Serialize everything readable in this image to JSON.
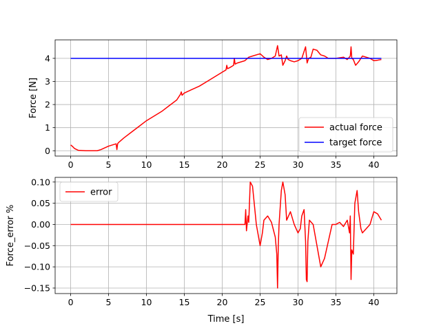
{
  "colors": {
    "actual": "#ff0000",
    "target": "#0000ff",
    "error": "#ff0000",
    "grid": "#b0b0b0"
  },
  "chart_data": [
    {
      "type": "line",
      "xlabel": "",
      "ylabel": "Force [N]",
      "xlim": [
        -2.05,
        43.05
      ],
      "ylim": [
        -0.23,
        4.8
      ],
      "grid": true,
      "legend_position": "lower-right",
      "xticks": [
        0,
        5,
        10,
        15,
        20,
        25,
        30,
        35,
        40
      ],
      "xtick_labels": [
        "0",
        "5",
        "10",
        "15",
        "20",
        "25",
        "30",
        "35",
        "40"
      ],
      "yticks": [
        0,
        1,
        2,
        3,
        4
      ],
      "ytick_labels": [
        "0",
        "1",
        "2",
        "3",
        "4"
      ],
      "series": [
        {
          "name": "actual force",
          "color": "#ff0000",
          "x": [
            0,
            0.2,
            0.5,
            0.8,
            1.0,
            2.0,
            3.0,
            3.5,
            4.0,
            5.0,
            6.0,
            6.1,
            6.2,
            6.3,
            7.0,
            8.0,
            9.0,
            10.0,
            11.0,
            12.0,
            13.0,
            14.0,
            14.5,
            14.6,
            14.7,
            15.0,
            16.0,
            17.0,
            18.0,
            19.0,
            20.0,
            20.5,
            20.6,
            20.7,
            21.0,
            21.5,
            21.6,
            21.7,
            22.0,
            23.0,
            23.5,
            24.0,
            25.0,
            25.5,
            26.0,
            26.5,
            27.0,
            27.3,
            27.5,
            27.8,
            28.0,
            28.3,
            28.5,
            28.7,
            29.0,
            29.5,
            30.0,
            30.5,
            31.0,
            31.2,
            31.4,
            31.7,
            32.0,
            32.5,
            33.0,
            33.5,
            34.0,
            35.0,
            36.0,
            36.5,
            36.9,
            37.0,
            37.1,
            37.3,
            37.6,
            38.0,
            38.5,
            39.0,
            39.5,
            40.0,
            40.5,
            41.0
          ],
          "y": [
            0.25,
            0.2,
            0.1,
            0.05,
            0.02,
            0.0,
            0.0,
            0.0,
            0.05,
            0.2,
            0.3,
            0.05,
            0.3,
            0.35,
            0.55,
            0.8,
            1.05,
            1.3,
            1.5,
            1.7,
            1.95,
            2.2,
            2.45,
            2.55,
            2.4,
            2.5,
            2.65,
            2.8,
            3.0,
            3.2,
            3.4,
            3.5,
            3.7,
            3.55,
            3.6,
            3.7,
            4.0,
            3.75,
            3.8,
            3.9,
            4.05,
            4.1,
            4.2,
            4.05,
            3.95,
            4.0,
            4.1,
            4.55,
            4.1,
            4.15,
            3.7,
            3.9,
            4.1,
            3.95,
            3.9,
            3.85,
            3.9,
            4.0,
            4.5,
            3.8,
            4.0,
            4.05,
            4.4,
            4.35,
            4.15,
            4.1,
            4.0,
            4.0,
            4.05,
            3.95,
            4.1,
            4.5,
            4.0,
            3.95,
            3.7,
            3.85,
            4.1,
            4.05,
            4.0,
            3.9,
            3.92,
            3.95
          ]
        },
        {
          "name": "target force",
          "color": "#0000ff",
          "x": [
            0,
            41
          ],
          "y": [
            4,
            4
          ]
        }
      ]
    },
    {
      "type": "line",
      "xlabel": "Time [s]",
      "ylabel": "Force_error %",
      "xlim": [
        -2.05,
        43.05
      ],
      "ylim": [
        -0.163,
        0.111
      ],
      "grid": true,
      "legend_position": "upper-left",
      "xticks": [
        0,
        5,
        10,
        15,
        20,
        25,
        30,
        35,
        40
      ],
      "xtick_labels": [
        "0",
        "5",
        "10",
        "15",
        "20",
        "25",
        "30",
        "35",
        "40"
      ],
      "yticks": [
        -0.15,
        -0.1,
        -0.05,
        0.0,
        0.05,
        0.1
      ],
      "ytick_labels": [
        "−0.15",
        "−0.10",
        "−0.05",
        "0.00",
        "0.05",
        "0.10"
      ],
      "series": [
        {
          "name": "error",
          "color": "#ff0000",
          "x": [
            0,
            23.0,
            23.1,
            23.2,
            23.4,
            23.5,
            23.7,
            24.0,
            24.5,
            25.0,
            25.3,
            25.5,
            26.0,
            26.5,
            27.0,
            27.2,
            27.3,
            27.4,
            27.5,
            27.8,
            28.0,
            28.3,
            28.5,
            29.0,
            29.5,
            30.0,
            30.3,
            30.5,
            30.8,
            31.0,
            31.1,
            31.2,
            31.3,
            31.5,
            32.0,
            32.5,
            33.0,
            33.5,
            34.0,
            34.5,
            35.0,
            35.5,
            36.0,
            36.5,
            36.8,
            36.9,
            37.0,
            37.1,
            37.3,
            37.5,
            37.8,
            38.0,
            38.3,
            38.5,
            39.0,
            39.5,
            40.0,
            40.5,
            41.0
          ],
          "y": [
            0,
            0,
            0.035,
            -0.015,
            0.02,
            0.005,
            0.1,
            0.09,
            0.0,
            -0.05,
            -0.02,
            0.01,
            0.02,
            0.005,
            -0.03,
            -0.07,
            -0.15,
            -0.05,
            0.0,
            0.08,
            0.1,
            0.07,
            0.01,
            0.03,
            0.0,
            -0.02,
            -0.01,
            0.02,
            0.035,
            -0.04,
            -0.13,
            -0.135,
            -0.04,
            0.01,
            0.0,
            -0.05,
            -0.1,
            -0.08,
            -0.04,
            0.0,
            0.0,
            0.005,
            -0.005,
            0.01,
            -0.02,
            0.02,
            -0.13,
            -0.06,
            -0.07,
            0.05,
            0.08,
            0.03,
            -0.01,
            -0.02,
            -0.01,
            0.0,
            0.03,
            0.025,
            0.01
          ]
        }
      ]
    }
  ]
}
